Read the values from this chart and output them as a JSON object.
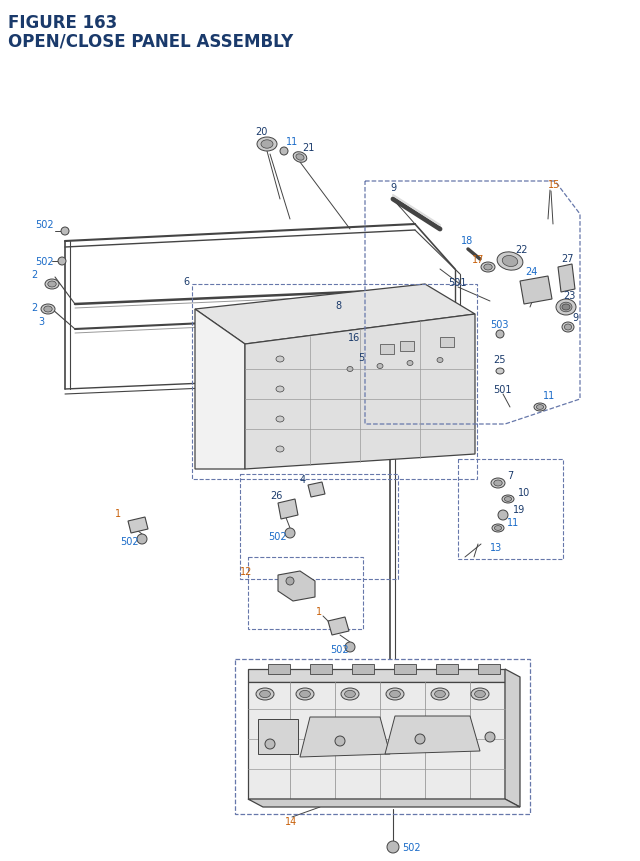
{
  "title_line1": "FIGURE 163",
  "title_line2": "OPEN/CLOSE PANEL ASSEMBLY",
  "title_color": "#1a3a6b",
  "title_fontsize": 12,
  "bg_color": "#ffffff",
  "dc": "#1a3a6b",
  "oc": "#c8600a",
  "bc": "#1a6bc8",
  "gray": "#444444",
  "lgray": "#999999",
  "dgray": "#222222"
}
